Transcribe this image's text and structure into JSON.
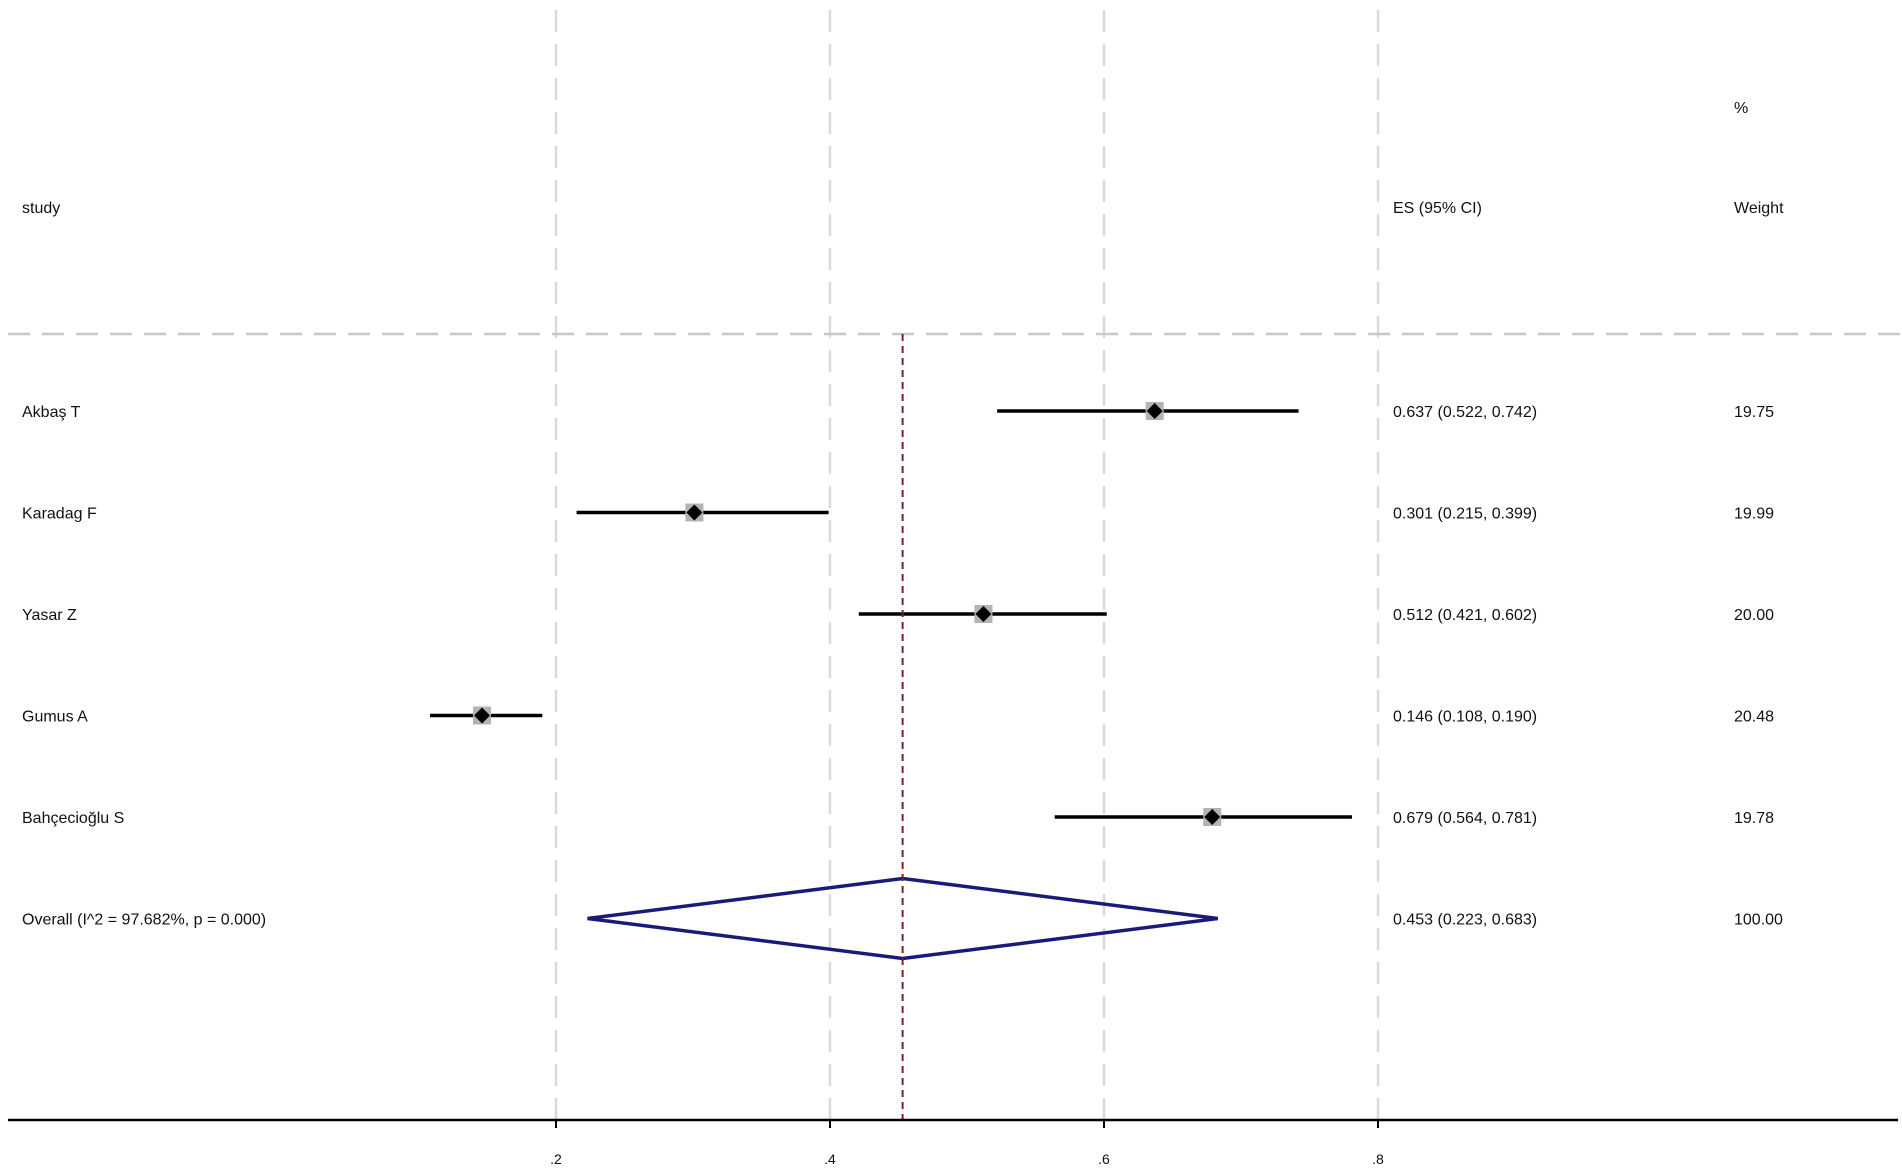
{
  "headers": {
    "study": "study",
    "es": "ES (95% CI)",
    "weight_top": "%",
    "weight": "Weight"
  },
  "chart_data": {
    "type": "forest",
    "xlim": [
      0,
      1.0
    ],
    "x_ticks": [
      0.2,
      0.4,
      0.6,
      0.8
    ],
    "x_tick_labels": [
      ".2",
      ".4",
      ".6",
      ".8"
    ],
    "grid": true,
    "studies": [
      {
        "name": "Akbaş T",
        "es": 0.637,
        "lo": 0.522,
        "hi": 0.742,
        "es_text": "0.637 (0.522, 0.742)",
        "weight": "19.75"
      },
      {
        "name": "Karadag F",
        "es": 0.301,
        "lo": 0.215,
        "hi": 0.399,
        "es_text": "0.301 (0.215, 0.399)",
        "weight": "19.99"
      },
      {
        "name": "Yasar Z",
        "es": 0.512,
        "lo": 0.421,
        "hi": 0.602,
        "es_text": "0.512 (0.421, 0.602)",
        "weight": "20.00"
      },
      {
        "name": "Gumus A",
        "es": 0.146,
        "lo": 0.108,
        "hi": 0.19,
        "es_text": "0.146 (0.108, 0.190)",
        "weight": "20.48"
      },
      {
        "name": "Bahçecioğlu S",
        "es": 0.679,
        "lo": 0.564,
        "hi": 0.781,
        "es_text": "0.679 (0.564, 0.781)",
        "weight": "19.78"
      }
    ],
    "overall": {
      "name": "Overall  (I^2 = 97.682%, p = 0.000)",
      "es": 0.453,
      "lo": 0.223,
      "hi": 0.683,
      "es_text": "0.453 (0.223, 0.683)",
      "weight": "100.00"
    },
    "colors": {
      "ci_line": "#000000",
      "weight_box": "#b3b3b3",
      "point": "#000000",
      "overall_diamond": "#1a1a7a",
      "overall_line": "#8b1a1a",
      "grid": "#d9d9d9",
      "axis": "#000000"
    }
  }
}
